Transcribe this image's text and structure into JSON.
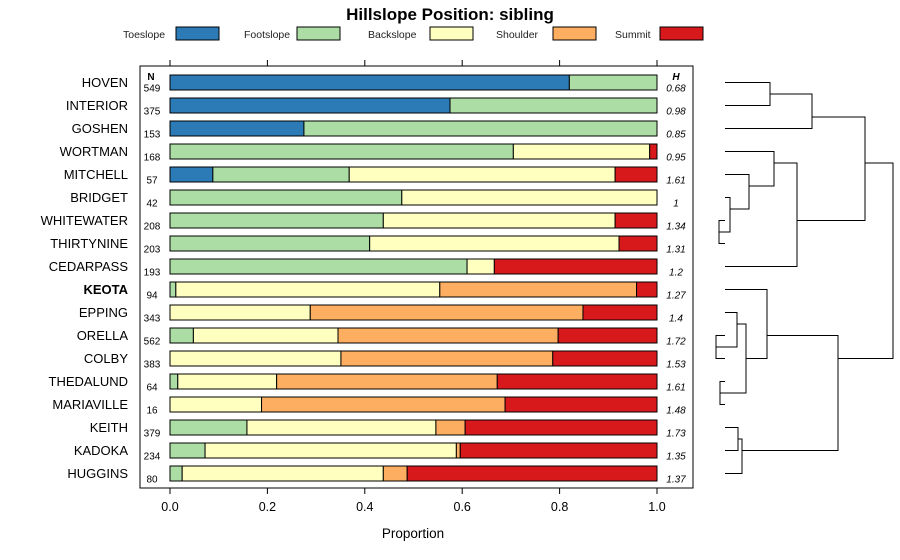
{
  "chart_data": {
    "type": "bar",
    "stacked": true,
    "orientation": "horizontal",
    "title": "Hillslope Position: sibling",
    "xlabel": "Proportion",
    "ylabel": "",
    "xlim": [
      0,
      1
    ],
    "x_ticks": [
      "0.0",
      "0.2",
      "0.4",
      "0.6",
      "0.8",
      "1.0"
    ],
    "n_header": "N",
    "h_header": "H",
    "highlight": "KEOTA",
    "legend": [
      {
        "name": "Toeslope",
        "color": "#2c7bb6"
      },
      {
        "name": "Footslope",
        "color": "#abdda4"
      },
      {
        "name": "Backslope",
        "color": "#ffffbf"
      },
      {
        "name": "Shoulder",
        "color": "#fdae61"
      },
      {
        "name": "Summit",
        "color": "#d7191c"
      }
    ],
    "categories": [
      "HOVEN",
      "INTERIOR",
      "GOSHEN",
      "WORTMAN",
      "MITCHELL",
      "BRIDGET",
      "WHITEWATER",
      "THIRTYNINE",
      "CEDARPASS",
      "KEOTA",
      "EPPING",
      "ORELLA",
      "COLBY",
      "THEDALUND",
      "MARIAVILLE",
      "KEITH",
      "KADOKA",
      "HUGGINS"
    ],
    "n": [
      "549",
      "375",
      "153",
      "168",
      "57",
      "42",
      "208",
      "203",
      "193",
      "94",
      "343",
      "562",
      "383",
      "64",
      "16",
      "379",
      "234",
      "80"
    ],
    "h": [
      "0.68",
      "0.98",
      "0.85",
      "0.95",
      "1.61",
      "1",
      "1.34",
      "1.31",
      "1.2",
      "1.27",
      "1.4",
      "1.72",
      "1.53",
      "1.61",
      "1.48",
      "1.73",
      "1.35",
      "1.37"
    ],
    "series": [
      {
        "name": "Toeslope",
        "values": [
          0.82,
          0.575,
          0.275,
          0,
          0.088,
          0,
          0,
          0,
          0,
          0,
          0,
          0,
          0,
          0,
          0,
          0,
          0,
          0
        ]
      },
      {
        "name": "Footslope",
        "values": [
          0.18,
          0.425,
          0.725,
          0.705,
          0.28,
          0.476,
          0.438,
          0.41,
          0.61,
          0.012,
          0,
          0.048,
          0,
          0.016,
          0,
          0.158,
          0.072,
          0.025
        ]
      },
      {
        "name": "Backslope",
        "values": [
          0,
          0,
          0,
          0.28,
          0.546,
          0.524,
          0.476,
          0.512,
          0.056,
          0.542,
          0.288,
          0.297,
          0.351,
          0.203,
          0.188,
          0.388,
          0.516,
          0.413
        ]
      },
      {
        "name": "Shoulder",
        "values": [
          0,
          0,
          0,
          0,
          0,
          0,
          0,
          0,
          0,
          0.404,
          0.56,
          0.452,
          0.435,
          0.453,
          0.5,
          0.06,
          0.008,
          0.049
        ]
      },
      {
        "name": "Summit",
        "values": [
          0,
          0,
          0,
          0.015,
          0.086,
          0,
          0.086,
          0.078,
          0.334,
          0.042,
          0.152,
          0.203,
          0.214,
          0.328,
          0.312,
          0.394,
          0.404,
          0.513
        ]
      }
    ]
  }
}
